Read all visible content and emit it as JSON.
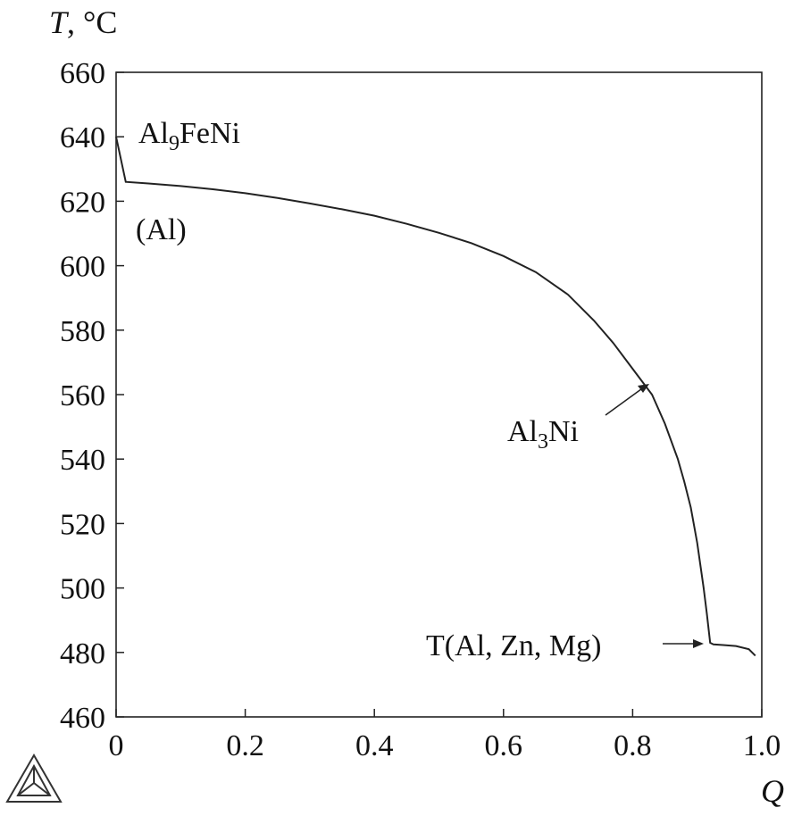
{
  "chart_data": {
    "type": "line",
    "xlabel": "Q",
    "ylabel_var": "T",
    "ylabel_unit": ", °C",
    "xlim": [
      0,
      1.0
    ],
    "ylim": [
      460,
      660
    ],
    "xticks": [
      0,
      0.2,
      0.4,
      0.6,
      0.8,
      1.0
    ],
    "xtick_labels": [
      "0",
      "0.2",
      "0.4",
      "0.6",
      "0.8",
      "1.0"
    ],
    "yticks": [
      460,
      480,
      500,
      520,
      540,
      560,
      580,
      600,
      620,
      640,
      660
    ],
    "ytick_labels": [
      "460",
      "480",
      "500",
      "520",
      "540",
      "560",
      "580",
      "600",
      "620",
      "640",
      "660"
    ],
    "series": [
      {
        "x": [
          0,
          0.015,
          0.05,
          0.1,
          0.15,
          0.2,
          0.25,
          0.3,
          0.35,
          0.4,
          0.45,
          0.5,
          0.55,
          0.6,
          0.65,
          0.7,
          0.74,
          0.77,
          0.8,
          0.83,
          0.85,
          0.87,
          0.88,
          0.89,
          0.9,
          0.91,
          0.915,
          0.92,
          0.925,
          0.94,
          0.96,
          0.98,
          0.99
        ],
        "y": [
          640,
          626,
          625.5,
          624.7,
          623.7,
          622.5,
          621,
          619.3,
          617.5,
          615.5,
          613,
          610.2,
          607,
          603,
          598,
          591,
          583,
          576,
          568,
          560,
          551,
          540,
          533,
          525,
          514,
          500,
          492,
          483,
          482.5,
          482.3,
          482,
          481,
          479
        ]
      }
    ],
    "annotations": {
      "al9": {
        "main": "Al",
        "sub": "9",
        "rest": "FeNi"
      },
      "al": {
        "text": "(Al)"
      },
      "al3": {
        "main": "Al",
        "sub": "3",
        "rest": "Ni"
      },
      "t": {
        "text": "T(Al, Zn, Mg)"
      }
    },
    "grid": false,
    "line_color": "#222222"
  }
}
